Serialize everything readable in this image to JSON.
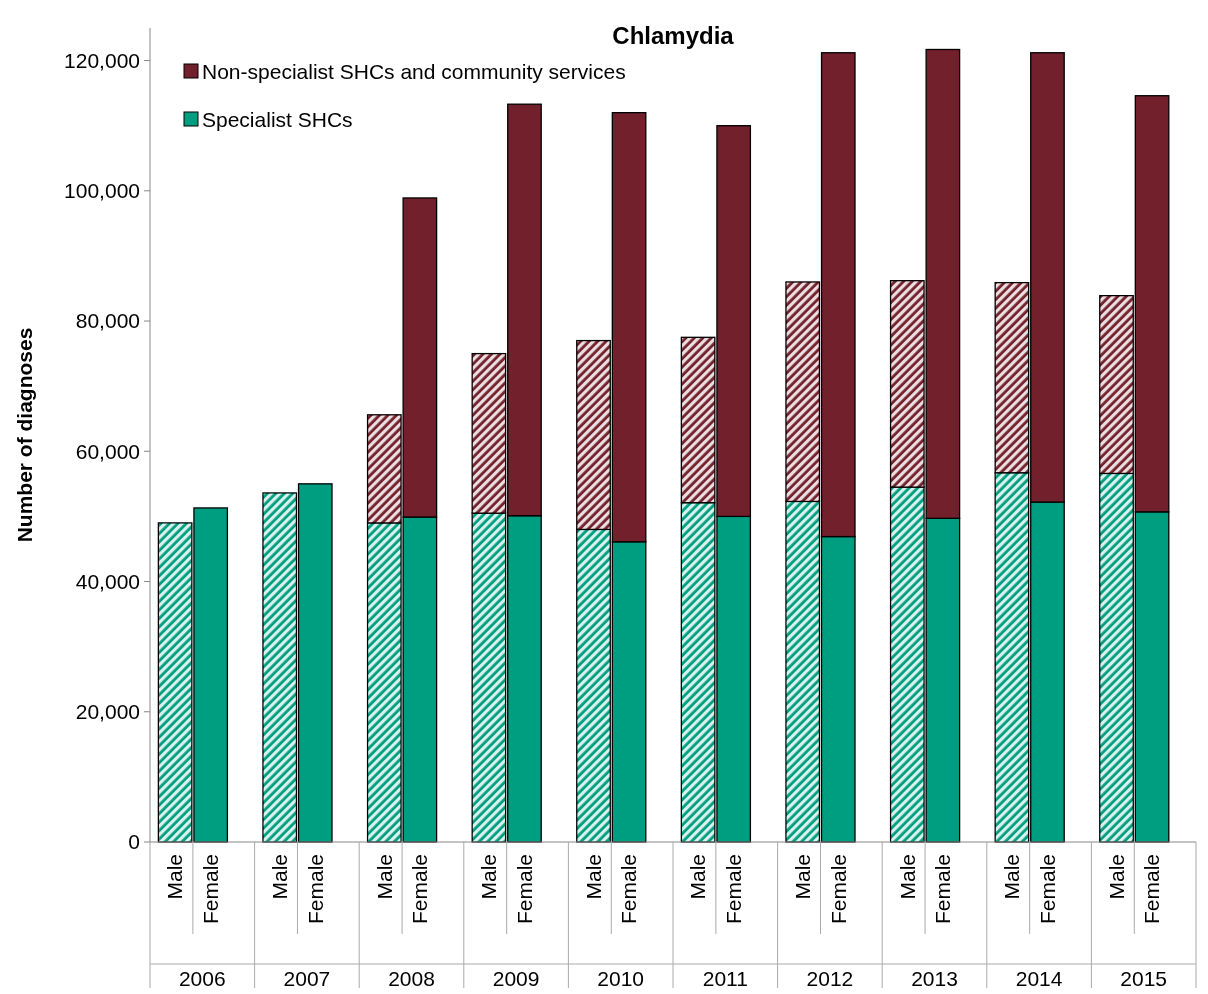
{
  "chart_data": {
    "type": "bar",
    "stacked": true,
    "title": "Chlamydia",
    "ylabel": "Number of diagnoses",
    "categories": [
      "Male",
      "Female",
      "Male",
      "Female",
      "Male",
      "Female",
      "Male",
      "Female",
      "Male",
      "Female",
      "Male",
      "Female",
      "Male",
      "Female",
      "Male",
      "Female",
      "Male",
      "Female",
      "Male",
      "Female"
    ],
    "annotations": [
      "2006",
      "2007",
      "2008",
      "2009",
      "2010",
      "2011",
      "2012",
      "2013",
      "2014",
      "2015"
    ],
    "series": [
      {
        "name": "Specialist SHCs",
        "color": "#009e80",
        "values": [
          49000,
          51300,
          53600,
          55000,
          49000,
          49900,
          50500,
          50100,
          48000,
          46100,
          52100,
          50000,
          52300,
          46900,
          54500,
          49700,
          56700,
          52200,
          56600,
          50700
        ]
      },
      {
        "name": "Non-specialist SHCs and community services",
        "color": "#72202c",
        "values": [
          null,
          null,
          null,
          null,
          16600,
          49000,
          24500,
          63200,
          29000,
          65900,
          25400,
          60000,
          33700,
          74300,
          31700,
          72000,
          29200,
          69000,
          27300,
          63900
        ]
      }
    ],
    "ylim": [
      0,
      125000
    ],
    "yticks": [
      {
        "value": 0,
        "label": "0"
      },
      {
        "value": 20000,
        "label": "20,000"
      },
      {
        "value": 40000,
        "label": "40,000"
      },
      {
        "value": 60000,
        "label": "60,000"
      },
      {
        "value": 80000,
        "label": "80,000"
      },
      {
        "value": 100000,
        "label": "100,000"
      },
      {
        "value": 120000,
        "label": "120,000"
      }
    ],
    "legend": "top left",
    "grid": false
  }
}
